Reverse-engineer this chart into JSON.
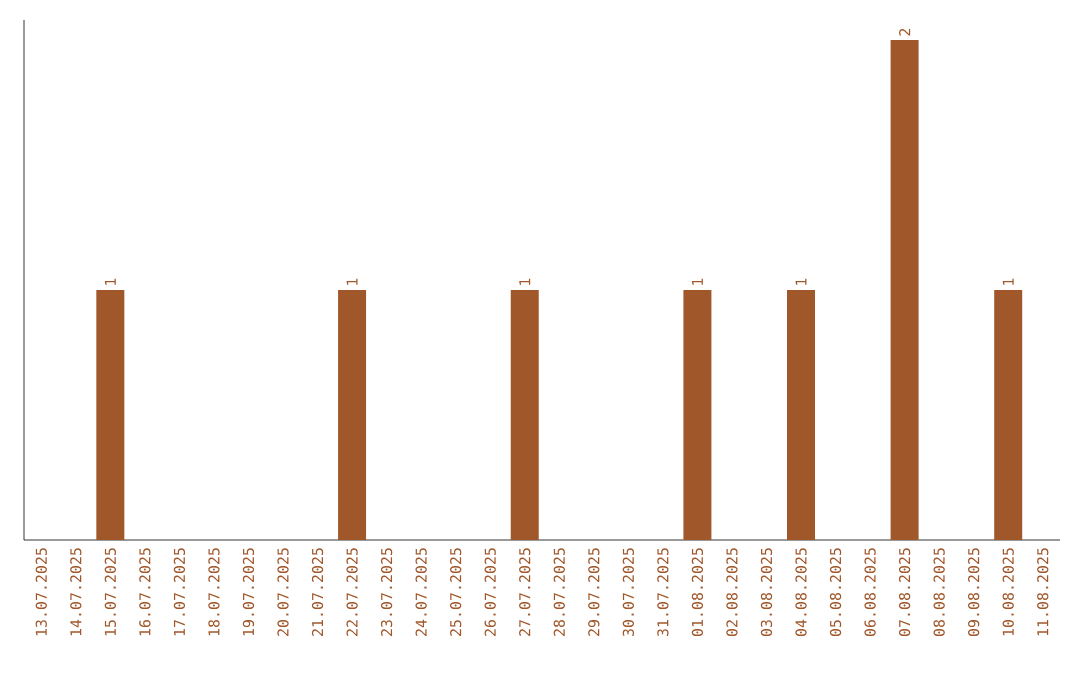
{
  "chart_data": {
    "type": "bar",
    "color": "#a0572a",
    "categories": [
      "13.07.2025",
      "14.07.2025",
      "15.07.2025",
      "16.07.2025",
      "17.07.2025",
      "18.07.2025",
      "19.07.2025",
      "20.07.2025",
      "21.07.2025",
      "22.07.2025",
      "23.07.2025",
      "24.07.2025",
      "25.07.2025",
      "26.07.2025",
      "27.07.2025",
      "28.07.2025",
      "29.07.2025",
      "30.07.2025",
      "31.07.2025",
      "01.08.2025",
      "02.08.2025",
      "03.08.2025",
      "04.08.2025",
      "05.08.2025",
      "06.08.2025",
      "07.08.2025",
      "08.08.2025",
      "09.08.2025",
      "10.08.2025",
      "11.08.2025"
    ],
    "values": [
      0,
      0,
      1,
      0,
      0,
      0,
      0,
      0,
      0,
      1,
      0,
      0,
      0,
      0,
      1,
      0,
      0,
      0,
      0,
      1,
      0,
      0,
      1,
      0,
      0,
      2,
      0,
      0,
      1,
      0
    ],
    "value_labels": [
      null,
      null,
      "1",
      null,
      null,
      null,
      null,
      null,
      null,
      "1",
      null,
      null,
      null,
      null,
      "1",
      null,
      null,
      null,
      null,
      "1",
      null,
      null,
      "1",
      null,
      null,
      "2",
      null,
      null,
      "1",
      null
    ]
  }
}
